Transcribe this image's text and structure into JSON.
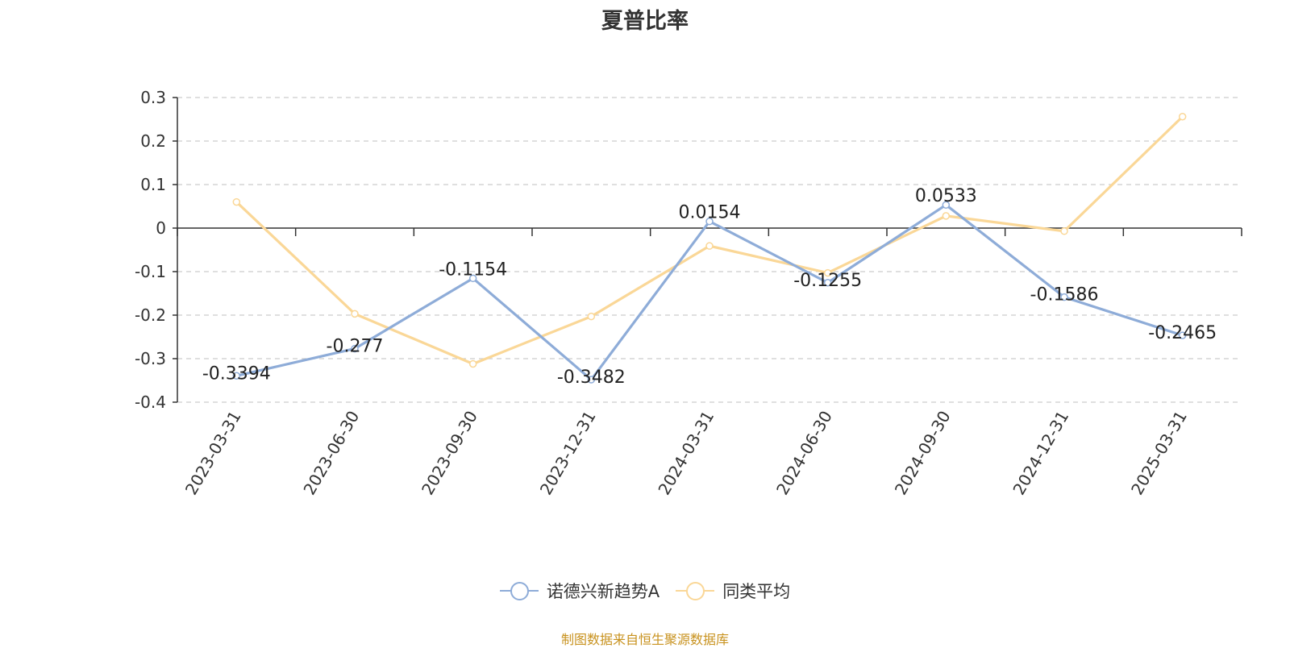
{
  "chart_data": {
    "type": "line",
    "title": "夏普比率",
    "categories": [
      "2023-03-31",
      "2023-06-30",
      "2023-09-30",
      "2023-12-31",
      "2024-03-31",
      "2024-06-30",
      "2024-09-30",
      "2024-12-31",
      "2025-03-31"
    ],
    "series": [
      {
        "name": "诺德兴新趋势A",
        "color": "#8eacd8",
        "values": [
          -0.3394,
          -0.277,
          -0.1154,
          -0.3482,
          0.0154,
          -0.1255,
          0.0533,
          -0.1586,
          -0.2465
        ],
        "labels": [
          "-0.3394",
          "-0.277",
          "-0.1154",
          "-0.3482",
          "0.0154",
          "-0.1255",
          "0.0533",
          "-0.1586",
          "-0.2465"
        ]
      },
      {
        "name": "同类平均",
        "color": "#fad797",
        "values": [
          0.06,
          -0.197,
          -0.312,
          -0.203,
          -0.041,
          -0.103,
          0.028,
          -0.007,
          0.256
        ]
      }
    ],
    "ylim": [
      -0.4,
      0.3
    ],
    "yticks": [
      0.3,
      0.2,
      0.1,
      0,
      -0.1,
      -0.2,
      -0.3,
      -0.4
    ],
    "ytick_labels": [
      "0.3",
      "0.2",
      "0.1",
      "0",
      "-0.1",
      "-0.2",
      "-0.3",
      "-0.4"
    ],
    "grid": true,
    "legend_position": "bottom-center"
  },
  "source_note": "制图数据来自恒生聚源数据库",
  "source_note_color": "#c8921e"
}
